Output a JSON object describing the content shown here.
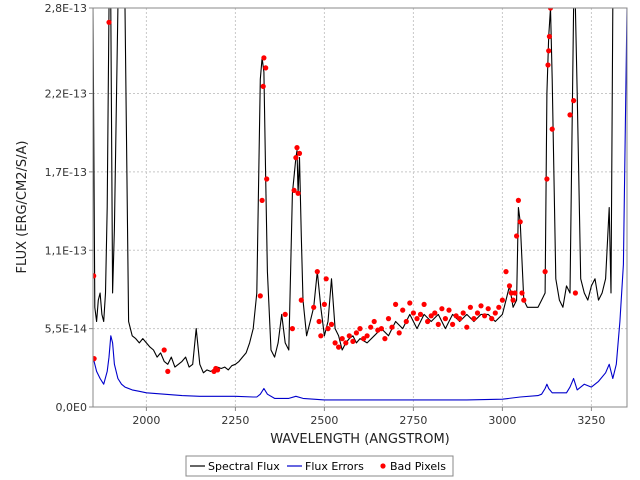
{
  "chart_data": {
    "type": "line",
    "title": "",
    "xlabel": "WAVELENGTH (ANGSTROM)",
    "ylabel": "FLUX (ERG/CM2/S/A)",
    "xlim": [
      1850,
      3350
    ],
    "ylim": [
      0,
      2.8e-13
    ],
    "x_ticks": [
      2000,
      2250,
      2500,
      2750,
      3000,
      3250
    ],
    "x_tick_labels": [
      "2000",
      "2250",
      "2500",
      "2750",
      "3000",
      "3250"
    ],
    "y_ticks": [
      0,
      5.5e-14,
      1.1e-13,
      1.65e-13,
      2.2e-13,
      2.8e-13
    ],
    "y_tick_labels": [
      "0,0E0",
      "5,5E-14",
      "1,1E-13",
      "1,7E-13",
      "2,2E-13",
      "2,8E-13"
    ],
    "grid": true,
    "legend_position": "bottom",
    "series": [
      {
        "name": "Spectral Flux",
        "kind": "line",
        "color": "#000000",
        "x": [
          1850,
          1855,
          1860,
          1865,
          1870,
          1875,
          1880,
          1885,
          1890,
          1895,
          1900,
          1905,
          1910,
          1920,
          1930,
          1940,
          1950,
          1960,
          1970,
          1980,
          1990,
          2000,
          2010,
          2020,
          2030,
          2040,
          2050,
          2060,
          2070,
          2080,
          2090,
          2100,
          2110,
          2120,
          2130,
          2140,
          2150,
          2160,
          2170,
          2180,
          2190,
          2200,
          2210,
          2220,
          2230,
          2240,
          2250,
          2260,
          2270,
          2280,
          2290,
          2300,
          2310,
          2320,
          2325,
          2330,
          2335,
          2340,
          2350,
          2360,
          2370,
          2380,
          2390,
          2400,
          2410,
          2420,
          2423,
          2426,
          2430,
          2435,
          2440,
          2450,
          2460,
          2470,
          2480,
          2490,
          2500,
          2510,
          2520,
          2530,
          2540,
          2550,
          2560,
          2570,
          2580,
          2590,
          2600,
          2620,
          2640,
          2660,
          2680,
          2700,
          2720,
          2740,
          2760,
          2780,
          2800,
          2820,
          2840,
          2860,
          2880,
          2900,
          2920,
          2940,
          2960,
          2980,
          3000,
          3010,
          3020,
          3030,
          3040,
          3045,
          3050,
          3060,
          3070,
          3080,
          3090,
          3100,
          3110,
          3120,
          3125,
          3130,
          3135,
          3140,
          3150,
          3160,
          3170,
          3180,
          3190,
          3200,
          3205,
          3210,
          3220,
          3230,
          3240,
          3250,
          3260,
          3270,
          3280,
          3290,
          3300,
          3305,
          3310,
          3320,
          3330,
          3340,
          3350
        ],
        "y": [
          2.8e-13,
          7e-14,
          6e-14,
          7.5e-14,
          8e-14,
          6.5e-14,
          6e-14,
          8e-14,
          1.4e-13,
          2.8e-13,
          2.8e-13,
          8e-14,
          1.25e-13,
          2.8e-13,
          2.8e-13,
          2.8e-13,
          6e-14,
          5e-14,
          4.8e-14,
          4.5e-14,
          4.8e-14,
          4.5e-14,
          4.2e-14,
          4e-14,
          3.5e-14,
          3.8e-14,
          3.2e-14,
          3e-14,
          3.5e-14,
          2.8e-14,
          3e-14,
          3.2e-14,
          3.5e-14,
          2.8e-14,
          3e-14,
          5.5e-14,
          3e-14,
          2.4e-14,
          2.6e-14,
          2.5e-14,
          2.6e-14,
          2.8e-14,
          2.7e-14,
          2.8e-14,
          2.6e-14,
          2.9e-14,
          3e-14,
          3.2e-14,
          3.5e-14,
          3.8e-14,
          4.5e-14,
          5.5e-14,
          8e-14,
          2.3e-13,
          2.45e-13,
          2.35e-13,
          1.6e-13,
          9.5e-14,
          4e-14,
          3.5e-14,
          4.5e-14,
          6.5e-14,
          4.5e-14,
          4e-14,
          1.5e-13,
          1.75e-13,
          1.8e-13,
          1.5e-13,
          1.75e-13,
          1.2e-13,
          7.5e-14,
          5e-14,
          6e-14,
          7e-14,
          9.5e-14,
          7e-14,
          5e-14,
          6e-14,
          9e-14,
          5.5e-14,
          5e-14,
          4e-14,
          4.5e-14,
          4.8e-14,
          5e-14,
          4.5e-14,
          4.8e-14,
          4.5e-14,
          5e-14,
          5.5e-14,
          5e-14,
          6e-14,
          5.5e-14,
          6.5e-14,
          5.5e-14,
          6.5e-14,
          6e-14,
          6.5e-14,
          5.5e-14,
          6.5e-14,
          6e-14,
          6.5e-14,
          6e-14,
          6.5e-14,
          6.5e-14,
          6e-14,
          6.5e-14,
          7.5e-14,
          8.5e-14,
          7e-14,
          7.5e-14,
          1.4e-13,
          1.3e-13,
          7.5e-14,
          7e-14,
          7e-14,
          7e-14,
          7e-14,
          7.5e-14,
          8e-14,
          2.2e-13,
          2.6e-13,
          2.8e-13,
          2.3e-13,
          9e-14,
          7.5e-14,
          7e-14,
          8.5e-14,
          8e-14,
          2.8e-13,
          2.8e-13,
          2.2e-13,
          9e-14,
          8e-14,
          7.5e-14,
          8.5e-14,
          9e-14,
          7.5e-14,
          8e-14,
          9e-14,
          1.4e-13,
          8e-14,
          2.8e-13,
          2.8e-13,
          2.8e-13,
          2.8e-13,
          2.8e-13
        ]
      },
      {
        "name": "Flux Errors",
        "kind": "line",
        "color": "#0000cc",
        "x": [
          1850,
          1860,
          1870,
          1880,
          1890,
          1895,
          1900,
          1905,
          1910,
          1920,
          1930,
          1940,
          1960,
          1980,
          2000,
          2050,
          2100,
          2150,
          2200,
          2250,
          2300,
          2310,
          2320,
          2330,
          2340,
          2360,
          2400,
          2420,
          2440,
          2500,
          2600,
          2700,
          2800,
          2900,
          3000,
          3050,
          3100,
          3110,
          3120,
          3125,
          3130,
          3140,
          3160,
          3180,
          3190,
          3200,
          3210,
          3230,
          3250,
          3270,
          3290,
          3300,
          3310,
          3320,
          3330,
          3340,
          3350
        ],
        "y": [
          3.5e-14,
          2.5e-14,
          2e-14,
          1.6e-14,
          2.5e-14,
          3.5e-14,
          5e-14,
          4.5e-14,
          3e-14,
          2e-14,
          1.6e-14,
          1.4e-14,
          1.2e-14,
          1.1e-14,
          1e-14,
          9e-15,
          8e-15,
          7.5e-15,
          7.5e-15,
          7.5e-15,
          7e-15,
          7e-15,
          9e-15,
          1.3e-14,
          9e-15,
          6e-15,
          6e-15,
          7.5e-15,
          6e-15,
          5e-15,
          5e-15,
          5e-15,
          5e-15,
          5e-15,
          5.5e-15,
          7e-15,
          8e-15,
          9e-15,
          1.3e-14,
          1.6e-14,
          1.3e-14,
          1e-14,
          1e-14,
          1e-14,
          1.4e-14,
          2e-14,
          1.2e-14,
          1.6e-14,
          1.4e-14,
          1.8e-14,
          2.4e-14,
          3e-14,
          2e-14,
          3e-14,
          6e-14,
          1e-13,
          2.8e-13
        ]
      },
      {
        "name": "Bad Pixels",
        "kind": "scatter",
        "color": "#ff0000",
        "x": [
          1852,
          1853,
          1895,
          2050,
          2060,
          2190,
          2195,
          2200,
          2320,
          2325,
          2328,
          2330,
          2335,
          2338,
          2390,
          2410,
          2415,
          2420,
          2423,
          2426,
          2430,
          2435,
          2470,
          2480,
          2485,
          2490,
          2500,
          2505,
          2510,
          2520,
          2530,
          2540,
          2550,
          2560,
          2570,
          2580,
          2590,
          2600,
          2610,
          2620,
          2630,
          2640,
          2650,
          2660,
          2670,
          2680,
          2690,
          2700,
          2710,
          2720,
          2730,
          2740,
          2750,
          2760,
          2770,
          2780,
          2790,
          2800,
          2810,
          2820,
          2830,
          2840,
          2850,
          2860,
          2870,
          2880,
          2890,
          2900,
          2910,
          2920,
          2930,
          2940,
          2950,
          2960,
          2970,
          2980,
          2990,
          3000,
          3010,
          3020,
          3025,
          3030,
          3035,
          3040,
          3045,
          3050,
          3055,
          3060,
          3120,
          3125,
          3128,
          3130,
          3132,
          3135,
          3140,
          3190,
          3200,
          3205
        ],
        "y": [
          9.2e-14,
          3.4e-14,
          2.7e-13,
          4e-14,
          2.5e-14,
          2.5e-14,
          2.7e-14,
          2.6e-14,
          7.8e-14,
          1.45e-13,
          2.25e-13,
          2.45e-13,
          2.38e-13,
          1.6e-13,
          6.5e-14,
          5.5e-14,
          1.52e-13,
          1.75e-13,
          1.82e-13,
          1.5e-13,
          1.78e-13,
          7.5e-14,
          7e-14,
          9.5e-14,
          6e-14,
          5e-14,
          7.2e-14,
          9e-14,
          5.5e-14,
          5.8e-14,
          4.5e-14,
          4.2e-14,
          4.8e-14,
          4.5e-14,
          5e-14,
          4.6e-14,
          5.2e-14,
          5.5e-14,
          4.8e-14,
          5e-14,
          5.6e-14,
          6e-14,
          5.4e-14,
          5.5e-14,
          4.8e-14,
          6.2e-14,
          5.6e-14,
          7.2e-14,
          5.2e-14,
          6.8e-14,
          6e-14,
          7.3e-14,
          6.6e-14,
          6.2e-14,
          6.5e-14,
          7.2e-14,
          6e-14,
          6.4e-14,
          6.6e-14,
          5.8e-14,
          6.9e-14,
          6.2e-14,
          6.8e-14,
          5.8e-14,
          6.4e-14,
          6.2e-14,
          6.6e-14,
          5.6e-14,
          7e-14,
          6.2e-14,
          6.6e-14,
          7.1e-14,
          6.4e-14,
          6.9e-14,
          6.2e-14,
          6.6e-14,
          7e-14,
          7.5e-14,
          9.5e-14,
          8.5e-14,
          8e-14,
          7.5e-14,
          8e-14,
          1.2e-13,
          1.45e-13,
          1.3e-13,
          8e-14,
          7.5e-14,
          9.5e-14,
          1.6e-13,
          2.4e-13,
          2.5e-13,
          2.6e-13,
          2.8e-13,
          1.95e-13,
          2.05e-13,
          2.15e-13,
          8e-14
        ]
      }
    ]
  }
}
